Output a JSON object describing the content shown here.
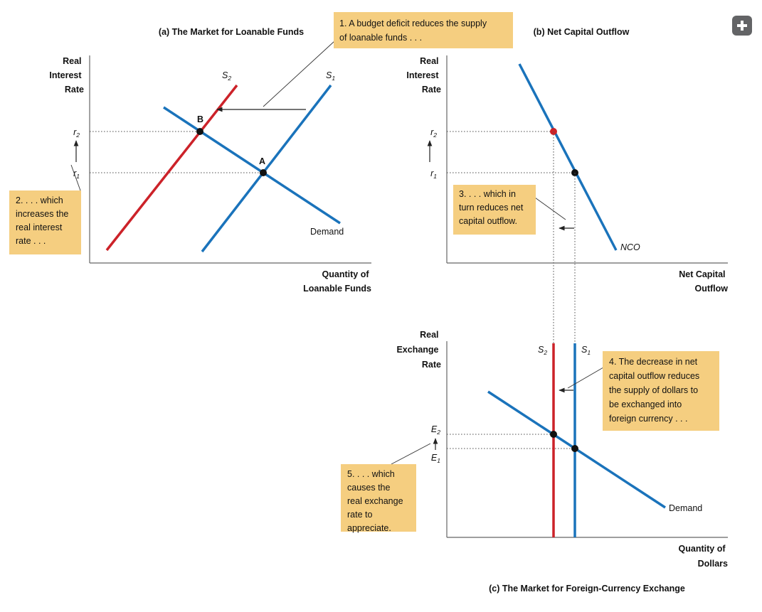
{
  "panel_a": {
    "title": "(a) The Market for Loanable Funds",
    "y_axis_label": [
      "Real",
      "Interest",
      "Rate"
    ],
    "x_axis_label": [
      "Quantity of",
      "Loanable Funds"
    ],
    "supply_new_label": "S",
    "supply_new_sub": "2",
    "supply_old_label": "S",
    "supply_old_sub": "1",
    "demand_label": "Demand",
    "point_a_label": "A",
    "point_b_label": "B",
    "tick_r2": "r",
    "tick_r2_sub": "2",
    "tick_r1": "r",
    "tick_r1_sub": "1"
  },
  "panel_b": {
    "title": "(b) Net Capital Outflow",
    "y_axis_label": [
      "Real",
      "Interest",
      "Rate"
    ],
    "x_axis_label": [
      "Net Capital",
      "Outflow"
    ],
    "curve_label": "NCO",
    "tick_r2": "r",
    "tick_r2_sub": "2",
    "tick_r1": "r",
    "tick_r1_sub": "1"
  },
  "panel_c": {
    "title": "(c) The Market for Foreign-Currency Exchange",
    "y_axis_label": [
      "Real",
      "Exchange",
      "Rate"
    ],
    "x_axis_label": [
      "Quantity of",
      "Dollars"
    ],
    "supply_new_label": "S",
    "supply_new_sub": "2",
    "supply_old_label": "S",
    "supply_old_sub": "1",
    "demand_label": "Demand",
    "tick_e2": "E",
    "tick_e2_sub": "2",
    "tick_e1": "E",
    "tick_e1_sub": "1"
  },
  "callouts": {
    "c1": [
      "1. A budget deficit reduces the supply",
      "of loanable funds . . ."
    ],
    "c2": [
      "2. . . . which",
      "increases the",
      "real interest",
      "rate . . ."
    ],
    "c3": [
      "3. . . . which in",
      "turn reduces net",
      "capital outflow."
    ],
    "c4": [
      "4. The decrease in net",
      "capital outflow reduces",
      "the supply of dollars to",
      "be exchanged into",
      "foreign currency . . ."
    ],
    "c5": [
      "5. . . . which",
      "causes the",
      "real exchange",
      "rate to",
      "appreciate."
    ]
  },
  "colors": {
    "supply_old": "#1a73bb",
    "supply_new": "#cc2229",
    "demand": "#1a73bb",
    "callout_fill": "#f5ce80",
    "axis": "#555555",
    "expand_button": "#636466"
  },
  "expand_button_icon": "plus-icon"
}
